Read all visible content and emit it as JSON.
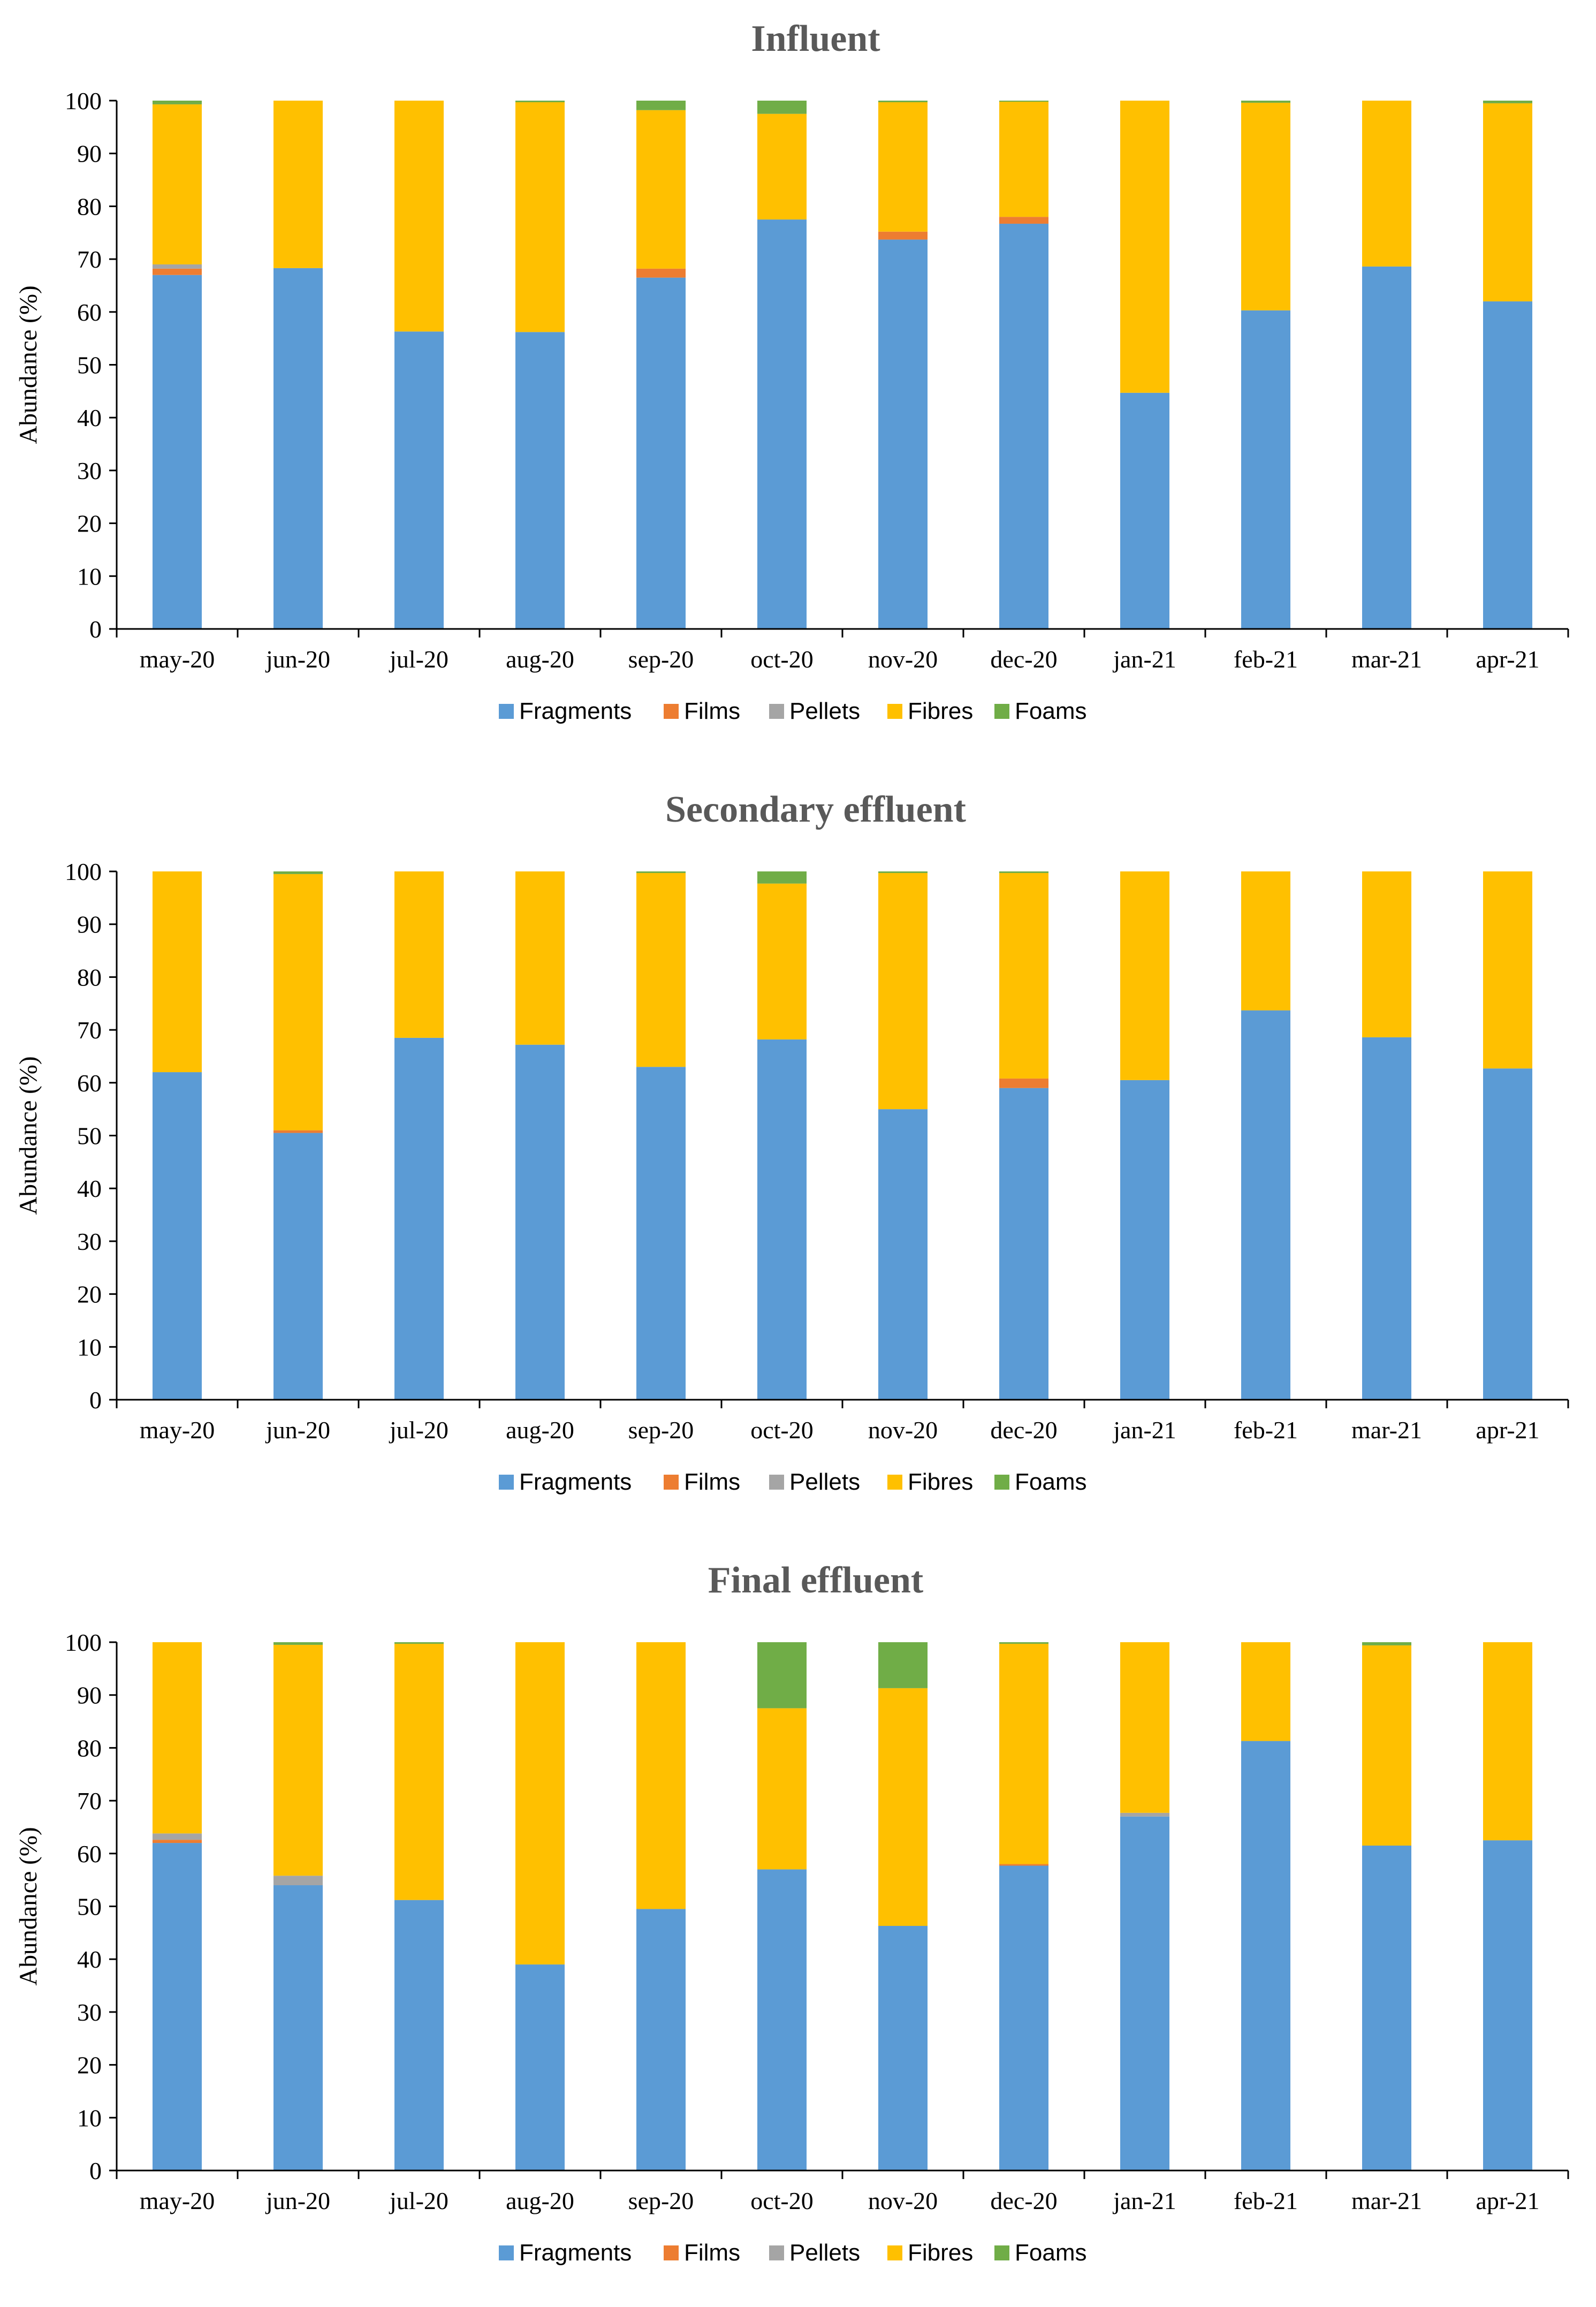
{
  "colors": {
    "Fragments": "#5B9BD5",
    "Films": "#ED7D31",
    "Pellets": "#A5A5A5",
    "Fibres": "#FFC000",
    "Foams": "#70AD47"
  },
  "chart_data": [
    {
      "type": "bar",
      "stacked": true,
      "title": "Influent",
      "ylabel": "Abundance (%)",
      "xlabel": "",
      "ylim": [
        0,
        100
      ],
      "yticks": [
        0,
        10,
        20,
        30,
        40,
        50,
        60,
        70,
        80,
        90,
        100
      ],
      "legend_position": "bottom",
      "categories": [
        "may-20",
        "jun-20",
        "jul-20",
        "aug-20",
        "sep-20",
        "oct-20",
        "nov-20",
        "dec-20",
        "jan-21",
        "feb-21",
        "mar-21",
        "apr-21"
      ],
      "series": [
        {
          "name": "Fragments",
          "values": [
            67,
            68.3,
            56.3,
            56.2,
            66.5,
            77.5,
            73.7,
            76.7,
            44.7,
            60.3,
            68.6,
            62
          ]
        },
        {
          "name": "Films",
          "values": [
            1.2,
            0,
            0,
            0,
            1.7,
            0,
            1.5,
            1.3,
            0,
            0,
            0,
            0
          ]
        },
        {
          "name": "Pellets",
          "values": [
            0.8,
            0,
            0,
            0,
            0,
            0,
            0,
            0,
            0,
            0,
            0,
            0
          ]
        },
        {
          "name": "Fibres",
          "values": [
            30.3,
            31.7,
            43.7,
            43.5,
            30,
            20,
            24.5,
            21.8,
            55.3,
            39.3,
            31.4,
            37.5
          ]
        },
        {
          "name": "Foams",
          "values": [
            0.7,
            0,
            0,
            0.3,
            1.8,
            2.5,
            0.3,
            0.2,
            0,
            0.4,
            0,
            0.5
          ]
        }
      ]
    },
    {
      "type": "bar",
      "stacked": true,
      "title": "Secondary effluent",
      "ylabel": "Abundance (%)",
      "xlabel": "",
      "ylim": [
        0,
        100
      ],
      "yticks": [
        0,
        10,
        20,
        30,
        40,
        50,
        60,
        70,
        80,
        90,
        100
      ],
      "legend_position": "bottom",
      "categories": [
        "may-20",
        "jun-20",
        "jul-20",
        "aug-20",
        "sep-20",
        "oct-20",
        "nov-20",
        "dec-20",
        "jan-21",
        "feb-21",
        "mar-21",
        "apr-21"
      ],
      "series": [
        {
          "name": "Fragments",
          "values": [
            62,
            50.5,
            68.5,
            67.2,
            63,
            68.2,
            55,
            59,
            60.5,
            73.7,
            68.6,
            62.7
          ]
        },
        {
          "name": "Films",
          "values": [
            0,
            0.5,
            0,
            0,
            0,
            0,
            0,
            1.8,
            0,
            0,
            0,
            0
          ]
        },
        {
          "name": "Pellets",
          "values": [
            0,
            0,
            0,
            0,
            0,
            0,
            0,
            0,
            0,
            0,
            0,
            0
          ]
        },
        {
          "name": "Fibres",
          "values": [
            38,
            48.5,
            31.5,
            32.8,
            36.7,
            29.5,
            44.7,
            38.9,
            39.5,
            26.3,
            31.4,
            37.3
          ]
        },
        {
          "name": "Foams",
          "values": [
            0,
            0.5,
            0,
            0,
            0.3,
            2.3,
            0.3,
            0.3,
            0,
            0,
            0,
            0
          ]
        }
      ]
    },
    {
      "type": "bar",
      "stacked": true,
      "title": "Final effluent",
      "ylabel": "Abundance (%)",
      "xlabel": "",
      "ylim": [
        0,
        100
      ],
      "yticks": [
        0,
        10,
        20,
        30,
        40,
        50,
        60,
        70,
        80,
        90,
        100
      ],
      "legend_position": "bottom",
      "categories": [
        "may-20",
        "jun-20",
        "jul-20",
        "aug-20",
        "sep-20",
        "oct-20",
        "nov-20",
        "dec-20",
        "jan-21",
        "feb-21",
        "mar-21",
        "apr-21"
      ],
      "series": [
        {
          "name": "Fragments",
          "values": [
            62,
            54,
            51.2,
            39,
            49.5,
            57,
            46.3,
            57.7,
            67,
            81.3,
            61.5,
            62.5
          ]
        },
        {
          "name": "Films",
          "values": [
            0.6,
            0,
            0,
            0,
            0,
            0,
            0,
            0.3,
            0,
            0,
            0,
            0
          ]
        },
        {
          "name": "Pellets",
          "values": [
            1.2,
            1.8,
            0,
            0,
            0,
            0,
            0,
            0,
            0.7,
            0,
            0,
            0
          ]
        },
        {
          "name": "Fibres",
          "values": [
            36.2,
            43.7,
            48.5,
            61,
            50.5,
            30.5,
            45,
            41.7,
            32.3,
            18.7,
            37.9,
            37.5
          ]
        },
        {
          "name": "Foams",
          "values": [
            0,
            0.5,
            0.3,
            0,
            0,
            12.5,
            8.7,
            0.3,
            0,
            0,
            0.6,
            0
          ]
        }
      ]
    }
  ]
}
